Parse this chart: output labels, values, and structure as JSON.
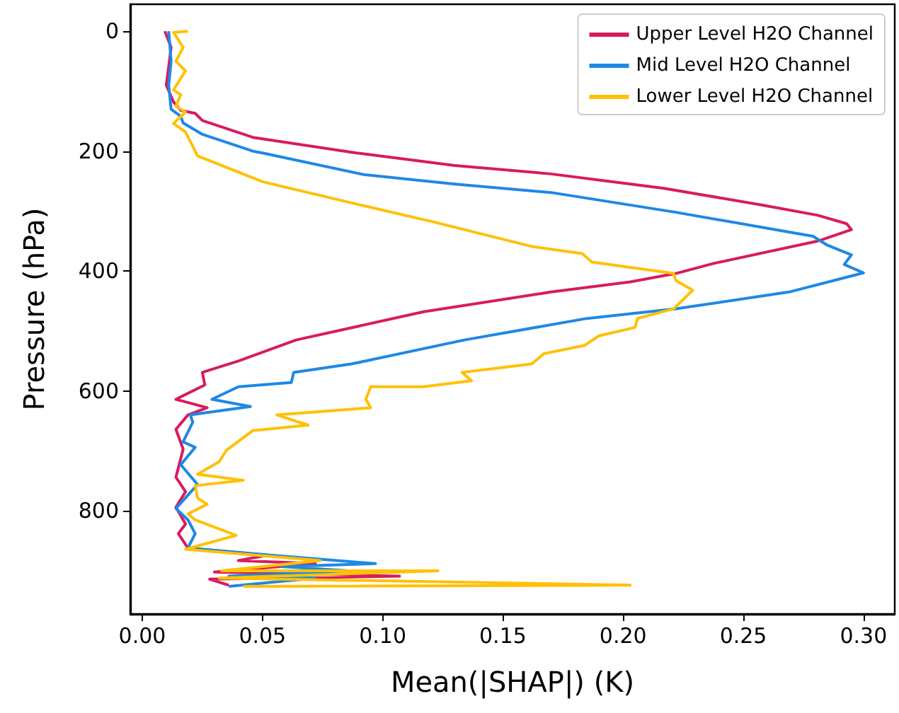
{
  "chart_data": {
    "type": "line",
    "xlabel": "Mean(|SHAP|) (K)",
    "ylabel": "Pressure (hPa)",
    "xlim": [
      -0.005,
      0.313
    ],
    "ylim": [
      972,
      -45
    ],
    "xticks": [
      {
        "value": 0,
        "label": "0.00"
      },
      {
        "value": 0.05,
        "label": "0.05"
      },
      {
        "value": 0.1,
        "label": "0.10"
      },
      {
        "value": 0.15,
        "label": "0.15"
      },
      {
        "value": 0.2,
        "label": "0.20"
      },
      {
        "value": 0.25,
        "label": "0.25"
      },
      {
        "value": 0.3,
        "label": "0.30"
      }
    ],
    "yticks": [
      0,
      200,
      400,
      600,
      800
    ],
    "grid": false,
    "legend": "top right",
    "series": [
      {
        "name": "Upper Level H2O Channel",
        "color": "#d81b60",
        "x": [
          0.0094,
          0.012,
          0.01,
          0.013,
          0.016,
          0.022,
          0.025,
          0.046,
          0.089,
          0.13,
          0.17,
          0.217,
          0.258,
          0.281,
          0.293,
          0.295,
          0.281,
          0.238,
          0.222,
          0.203,
          0.17,
          0.117,
          0.064,
          0.04,
          0.025,
          0.026,
          0.014,
          0.027,
          0.019,
          0.014,
          0.017,
          0.014,
          0.018,
          0.014,
          0.018,
          0.015,
          0.019,
          0.052,
          0.04,
          0.072,
          0.03,
          0.107,
          0.028,
          0.036
        ],
        "values": [
          0,
          27,
          90,
          118,
          132,
          137,
          149,
          177,
          203,
          224,
          238,
          262,
          290,
          307,
          321,
          331,
          350,
          387,
          404,
          418,
          435,
          468,
          515,
          550,
          569,
          590,
          614,
          628,
          640,
          664,
          697,
          744,
          768,
          794,
          822,
          838,
          862,
          874,
          883,
          888,
          902,
          909,
          914,
          924
        ]
      },
      {
        "name": "Mid Level H2O Channel",
        "color": "#1e88e5",
        "x": [
          0.011,
          0.012,
          0.011,
          0.012,
          0.016,
          0.017,
          0.025,
          0.046,
          0.05,
          0.092,
          0.13,
          0.17,
          0.222,
          0.279,
          0.285,
          0.295,
          0.292,
          0.3,
          0.269,
          0.222,
          0.185,
          0.134,
          0.087,
          0.063,
          0.062,
          0.04,
          0.029,
          0.045,
          0.02,
          0.021,
          0.017,
          0.022,
          0.016,
          0.023,
          0.014,
          0.019,
          0.022,
          0.019,
          0.054,
          0.097,
          0.058,
          0.086,
          0.036,
          0.072,
          0.036
        ],
        "values": [
          0,
          50,
          90,
          130,
          142,
          153,
          172,
          200,
          203,
          239,
          255,
          269,
          302,
          342,
          357,
          373,
          389,
          403,
          435,
          463,
          479,
          515,
          555,
          569,
          586,
          593,
          614,
          626,
          640,
          652,
          685,
          694,
          723,
          756,
          796,
          815,
          838,
          862,
          874,
          888,
          893,
          900,
          909,
          912,
          926
        ]
      },
      {
        "name": "Lower Level H2O Channel",
        "color": "#ffc107",
        "x": [
          0.019,
          0.013,
          0.017,
          0.014,
          0.018,
          0.013,
          0.016,
          0.014,
          0.018,
          0.013,
          0.018,
          0.022,
          0.023,
          0.05,
          0.092,
          0.121,
          0.162,
          0.183,
          0.187,
          0.221,
          0.222,
          0.229,
          0.221,
          0.206,
          0.205,
          0.19,
          0.184,
          0.167,
          0.162,
          0.133,
          0.137,
          0.117,
          0.095,
          0.093,
          0.095,
          0.056,
          0.069,
          0.046,
          0.035,
          0.032,
          0.023,
          0.042,
          0.022,
          0.023,
          0.027,
          0.019,
          0.022,
          0.039,
          0.018,
          0.074,
          0.033,
          0.123,
          0.032,
          0.203,
          0.042
        ],
        "values": [
          0,
          2,
          27,
          50,
          66,
          98,
          106,
          125,
          135,
          154,
          168,
          200,
          208,
          251,
          291,
          318,
          359,
          371,
          385,
          404,
          416,
          432,
          463,
          479,
          494,
          508,
          524,
          538,
          555,
          569,
          583,
          593,
          593,
          614,
          628,
          640,
          657,
          666,
          699,
          718,
          739,
          749,
          758,
          779,
          789,
          805,
          815,
          841,
          864,
          883,
          900,
          900,
          912,
          924,
          926
        ]
      }
    ]
  }
}
